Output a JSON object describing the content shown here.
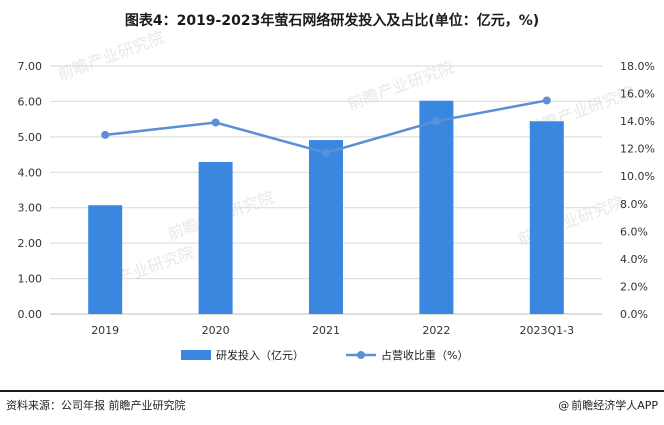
{
  "title": "图表4：2019-2023年萤石网络研发投入及占比(单位：亿元，%)",
  "footer": {
    "source": "资料来源：公司年报 前瞻产业研究院",
    "brand": "前瞻经济学人APP",
    "brand_icon": "@"
  },
  "watermark": "前瞻产业研究院",
  "colors": {
    "bar": "#3a87e0",
    "line": "#5b8fd6",
    "grid": "#d9d9d9"
  },
  "chart_data": {
    "type": "bar",
    "categories": [
      "2019",
      "2020",
      "2021",
      "2022",
      "2023Q1-3"
    ],
    "series": [
      {
        "name": "研发投入（亿元）",
        "type": "bar",
        "axis": "left",
        "values": [
          3.07,
          4.29,
          4.91,
          6.02,
          5.44
        ]
      },
      {
        "name": "占营收比重（%）",
        "type": "line",
        "axis": "right",
        "values": [
          13.0,
          13.9,
          11.7,
          14.0,
          15.5
        ]
      }
    ],
    "y_left": {
      "min": 0,
      "max": 7,
      "step": 1,
      "ticks": [
        "0.00",
        "1.00",
        "2.00",
        "3.00",
        "4.00",
        "5.00",
        "6.00",
        "7.00"
      ]
    },
    "y_right": {
      "min": 0,
      "max": 18,
      "step": 2,
      "ticks": [
        "0.0%",
        "2.0%",
        "4.0%",
        "6.0%",
        "8.0%",
        "10.0%",
        "12.0%",
        "14.0%",
        "16.0%",
        "18.0%"
      ]
    },
    "grid": true,
    "legend_position": "bottom"
  }
}
